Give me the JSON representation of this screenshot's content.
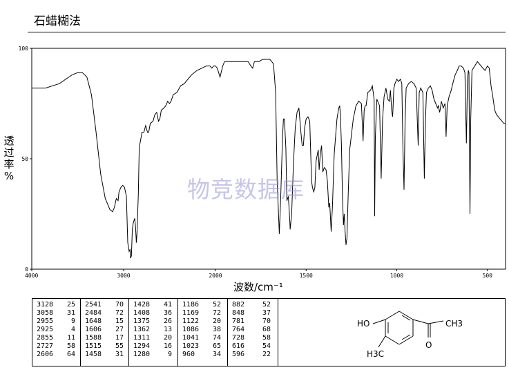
{
  "header": {
    "title": "石蜡糊法"
  },
  "chart_data": {
    "type": "line",
    "title": "",
    "xlabel": "波数/cm⁻¹",
    "ylabel": "透过率 %",
    "xlim": [
      4000,
      400
    ],
    "ylim": [
      0,
      100
    ],
    "x_ticks": [
      "4000",
      "3000",
      "2000",
      "1500",
      "1000",
      "500"
    ],
    "y_ticks": [
      "0",
      "50",
      "100"
    ],
    "series": [
      {
        "points": [
          [
            4000,
            82
          ],
          [
            3850,
            82
          ],
          [
            3700,
            84
          ],
          [
            3560,
            88
          ],
          [
            3500,
            89
          ],
          [
            3450,
            89
          ],
          [
            3400,
            87
          ],
          [
            3350,
            79
          ],
          [
            3300,
            62
          ],
          [
            3250,
            43
          ],
          [
            3200,
            32
          ],
          [
            3150,
            27
          ],
          [
            3120,
            26
          ],
          [
            3100,
            28
          ],
          [
            3080,
            32
          ],
          [
            3060,
            31
          ],
          [
            3050,
            35
          ],
          [
            3030,
            37
          ],
          [
            3010,
            38
          ],
          [
            2990,
            37
          ],
          [
            2970,
            33
          ],
          [
            2955,
            12
          ],
          [
            2940,
            8
          ],
          [
            2930,
            9
          ],
          [
            2925,
            5
          ],
          [
            2915,
            6
          ],
          [
            2905,
            18
          ],
          [
            2895,
            21
          ],
          [
            2880,
            23
          ],
          [
            2870,
            19
          ],
          [
            2862,
            12
          ],
          [
            2855,
            16
          ],
          [
            2840,
            34
          ],
          [
            2830,
            55
          ],
          [
            2800,
            62
          ],
          [
            2780,
            62
          ],
          [
            2760,
            65
          ],
          [
            2740,
            62
          ],
          [
            2727,
            62
          ],
          [
            2710,
            66
          ],
          [
            2680,
            67
          ],
          [
            2660,
            70
          ],
          [
            2640,
            71
          ],
          [
            2620,
            67
          ],
          [
            2606,
            68
          ],
          [
            2590,
            72
          ],
          [
            2560,
            73
          ],
          [
            2541,
            74
          ],
          [
            2520,
            76
          ],
          [
            2500,
            75
          ],
          [
            2484,
            76
          ],
          [
            2460,
            79
          ],
          [
            2420,
            80
          ],
          [
            2380,
            83
          ],
          [
            2340,
            84
          ],
          [
            2300,
            86
          ],
          [
            2260,
            88
          ],
          [
            2200,
            90
          ],
          [
            2150,
            91
          ],
          [
            2100,
            92
          ],
          [
            2060,
            92
          ],
          [
            2040,
            91
          ],
          [
            2020,
            92
          ],
          [
            2000,
            92
          ],
          [
            1990,
            91
          ],
          [
            1975,
            87
          ],
          [
            1960,
            92
          ],
          [
            1950,
            94
          ],
          [
            1900,
            94
          ],
          [
            1860,
            94
          ],
          [
            1820,
            94
          ],
          [
            1805,
            92
          ],
          [
            1795,
            91
          ],
          [
            1785,
            94
          ],
          [
            1760,
            94
          ],
          [
            1740,
            95
          ],
          [
            1700,
            95
          ],
          [
            1680,
            93
          ],
          [
            1668,
            80
          ],
          [
            1660,
            40
          ],
          [
            1650,
            20
          ],
          [
            1648,
            16
          ],
          [
            1640,
            33
          ],
          [
            1630,
            60
          ],
          [
            1625,
            68
          ],
          [
            1620,
            68
          ],
          [
            1612,
            55
          ],
          [
            1606,
            31
          ],
          [
            1598,
            33
          ],
          [
            1590,
            22
          ],
          [
            1588,
            18
          ],
          [
            1580,
            25
          ],
          [
            1570,
            48
          ],
          [
            1560,
            64
          ],
          [
            1550,
            71
          ],
          [
            1540,
            73
          ],
          [
            1530,
            63
          ],
          [
            1522,
            56
          ],
          [
            1515,
            56
          ],
          [
            1508,
            64
          ],
          [
            1500,
            68
          ],
          [
            1490,
            69
          ],
          [
            1480,
            67
          ],
          [
            1470,
            40
          ],
          [
            1465,
            37
          ],
          [
            1458,
            35
          ],
          [
            1452,
            37
          ],
          [
            1445,
            49
          ],
          [
            1438,
            52
          ],
          [
            1433,
            54
          ],
          [
            1428,
            45
          ],
          [
            1422,
            52
          ],
          [
            1415,
            56
          ],
          [
            1408,
            44
          ],
          [
            1400,
            46
          ],
          [
            1390,
            45
          ],
          [
            1383,
            40
          ],
          [
            1375,
            28
          ],
          [
            1370,
            30
          ],
          [
            1362,
            17
          ],
          [
            1355,
            28
          ],
          [
            1345,
            52
          ],
          [
            1330,
            68
          ],
          [
            1320,
            73
          ],
          [
            1315,
            74
          ],
          [
            1311,
            70
          ],
          [
            1305,
            56
          ],
          [
            1300,
            34
          ],
          [
            1294,
            20
          ],
          [
            1290,
            25
          ],
          [
            1285,
            17
          ],
          [
            1280,
            11
          ],
          [
            1275,
            14
          ],
          [
            1268,
            33
          ],
          [
            1260,
            54
          ],
          [
            1240,
            68
          ],
          [
            1225,
            74
          ],
          [
            1210,
            76
          ],
          [
            1195,
            75
          ],
          [
            1186,
            58
          ],
          [
            1180,
            72
          ],
          [
            1175,
            74
          ],
          [
            1169,
            74
          ],
          [
            1160,
            80
          ],
          [
            1145,
            81
          ],
          [
            1135,
            83
          ],
          [
            1125,
            77
          ],
          [
            1122,
            24
          ],
          [
            1118,
            60
          ],
          [
            1110,
            77
          ],
          [
            1095,
            74
          ],
          [
            1086,
            41
          ],
          [
            1078,
            68
          ],
          [
            1070,
            78
          ],
          [
            1060,
            82
          ],
          [
            1050,
            77
          ],
          [
            1041,
            76
          ],
          [
            1035,
            81
          ],
          [
            1028,
            72
          ],
          [
            1023,
            69
          ],
          [
            1016,
            82
          ],
          [
            1010,
            84
          ],
          [
            1000,
            86
          ],
          [
            990,
            85
          ],
          [
            980,
            86
          ],
          [
            972,
            84
          ],
          [
            966,
            55
          ],
          [
            960,
            36
          ],
          [
            954,
            68
          ],
          [
            948,
            82
          ],
          [
            935,
            84
          ],
          [
            920,
            85
          ],
          [
            905,
            84
          ],
          [
            893,
            82
          ],
          [
            882,
            56
          ],
          [
            876,
            80
          ],
          [
            868,
            82
          ],
          [
            856,
            80
          ],
          [
            848,
            41
          ],
          [
            842,
            67
          ],
          [
            836,
            80
          ],
          [
            826,
            82
          ],
          [
            815,
            83
          ],
          [
            805,
            81
          ],
          [
            795,
            77
          ],
          [
            785,
            75
          ],
          [
            775,
            73
          ],
          [
            770,
            74
          ],
          [
            764,
            71
          ],
          [
            761,
            72
          ],
          [
            754,
            76
          ],
          [
            744,
            73
          ],
          [
            734,
            75
          ],
          [
            728,
            60
          ],
          [
            722,
            74
          ],
          [
            712,
            78
          ],
          [
            700,
            81
          ],
          [
            688,
            85
          ],
          [
            678,
            88
          ],
          [
            666,
            90
          ],
          [
            656,
            92
          ],
          [
            645,
            92
          ],
          [
            632,
            91
          ],
          [
            624,
            89
          ],
          [
            616,
            57
          ],
          [
            610,
            86
          ],
          [
            605,
            90
          ],
          [
            602,
            89
          ],
          [
            596,
            25
          ],
          [
            592,
            68
          ],
          [
            585,
            90
          ],
          [
            570,
            92
          ],
          [
            555,
            94
          ],
          [
            545,
            93
          ],
          [
            535,
            92
          ],
          [
            525,
            91
          ],
          [
            513,
            90
          ],
          [
            500,
            92
          ],
          [
            490,
            91
          ],
          [
            480,
            83
          ],
          [
            470,
            78
          ],
          [
            460,
            72
          ],
          [
            450,
            70
          ],
          [
            440,
            69
          ],
          [
            430,
            68
          ],
          [
            420,
            67
          ],
          [
            410,
            66
          ],
          [
            400,
            66
          ]
        ]
      }
    ],
    "peak_table": [
      [
        [
          "3128",
          "25"
        ],
        [
          "3058",
          "31"
        ],
        [
          "2955",
          "9"
        ],
        [
          "2925",
          "4"
        ],
        [
          "2855",
          "11"
        ],
        [
          "2727",
          "58"
        ],
        [
          "2606",
          "64"
        ]
      ],
      [
        [
          "2541",
          "70"
        ],
        [
          "2484",
          "72"
        ],
        [
          "1648",
          "15"
        ],
        [
          "1606",
          "27"
        ],
        [
          "1588",
          "17"
        ],
        [
          "1515",
          "55"
        ],
        [
          "1458",
          "31"
        ]
      ],
      [
        [
          "1428",
          "41"
        ],
        [
          "1408",
          "36"
        ],
        [
          "1375",
          "26"
        ],
        [
          "1362",
          "13"
        ],
        [
          "1311",
          "20"
        ],
        [
          "1294",
          "16"
        ],
        [
          "1280",
          "9"
        ]
      ],
      [
        [
          "1186",
          "52"
        ],
        [
          "1169",
          "72"
        ],
        [
          "1122",
          "20"
        ],
        [
          "1086",
          "38"
        ],
        [
          "1041",
          "74"
        ],
        [
          "1023",
          "65"
        ],
        [
          "960",
          "34"
        ]
      ],
      [
        [
          "882",
          "52"
        ],
        [
          "848",
          "37"
        ],
        [
          "781",
          "70"
        ],
        [
          "764",
          "68"
        ],
        [
          "728",
          "58"
        ],
        [
          "616",
          "54"
        ],
        [
          "596",
          "22"
        ]
      ]
    ],
    "grid": false,
    "legend": "none"
  },
  "structure": {
    "ho_label": "HO",
    "ch3_label": "CH3",
    "o_label": "O",
    "h3c_label": "H3C"
  },
  "watermark": "物竞数据库"
}
